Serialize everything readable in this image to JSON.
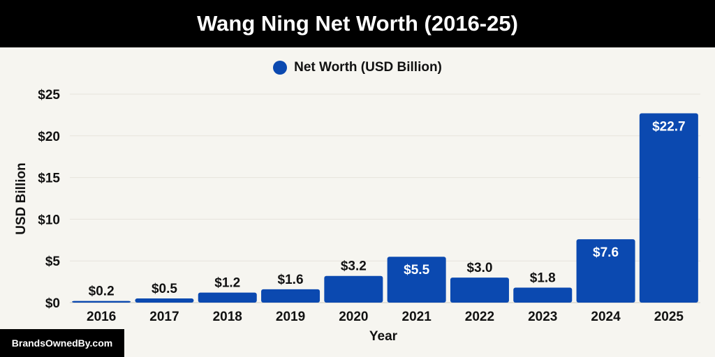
{
  "chart_data": {
    "type": "bar",
    "title": "Wang Ning Net Worth (2016-25)",
    "xlabel": "Year",
    "ylabel": "USD Billion",
    "categories": [
      "2016",
      "2017",
      "2018",
      "2019",
      "2020",
      "2021",
      "2022",
      "2023",
      "2024",
      "2025"
    ],
    "series": [
      {
        "name": "Net Worth (USD Billion)",
        "values": [
          0.2,
          0.5,
          1.2,
          1.6,
          3.2,
          5.5,
          3.0,
          1.8,
          7.6,
          22.7
        ],
        "data_labels": [
          "$0.2",
          "$0.5",
          "$1.2",
          "$1.6",
          "$3.2",
          "$5.5",
          "$3.0",
          "$1.8",
          "$7.6",
          "$22.7"
        ]
      }
    ],
    "ylim": [
      0,
      25
    ],
    "yticks": [
      0,
      5,
      10,
      15,
      20,
      25
    ],
    "ytick_labels": [
      "$0",
      "$5",
      "$10",
      "$15",
      "$20",
      "$25"
    ],
    "grid": true,
    "legend_position": "top-center",
    "bar_color": "#0b49b0"
  },
  "watermark": "BrandsOwnedBy.com"
}
